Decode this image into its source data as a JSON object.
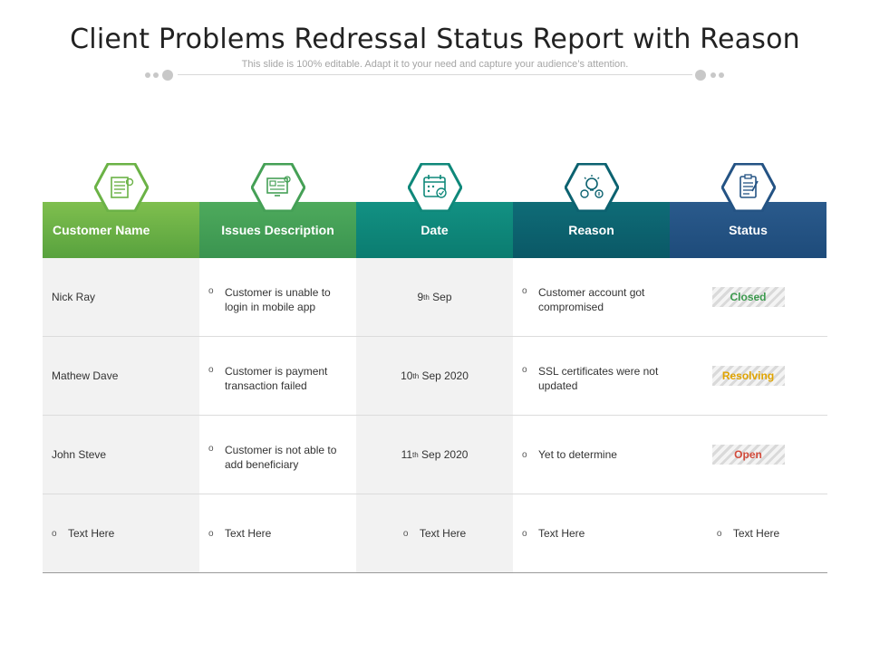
{
  "title": "Client Problems Redressal Status Report with Reason",
  "subtitle": "This slide is 100% editable. Adapt it to your need and capture your audience’s attention.",
  "colors": {
    "customer_name": "#6bb246",
    "issues_description": "#45a056",
    "date": "#0f887a",
    "reason": "#0c6270",
    "status": "#245384",
    "closed": "#3c9a4e",
    "resolving": "#e0a400",
    "open": "#d24a3a"
  },
  "icons": [
    "document-list-icon",
    "monitor-checklist-icon",
    "calendar-check-icon",
    "lightbulb-gears-icon",
    "clipboard-checklist-icon"
  ],
  "headers": [
    "Customer Name",
    "Issues Description",
    "Date",
    "Reason",
    "Status"
  ],
  "rows": [
    {
      "name": "Nick Ray",
      "issue": "Customer is unable to login in mobile app",
      "day": "9",
      "suffix": "th",
      "date_rest": " Sep",
      "reason": "Customer account got compromised",
      "status": "Closed"
    },
    {
      "name": "Mathew Dave",
      "issue": "Customer is payment transaction failed",
      "day": "10",
      "suffix": "th",
      "date_rest": " Sep 2020",
      "reason": "SSL certificates were not updated",
      "status": "Resolving"
    },
    {
      "name": "John Steve",
      "issue": "Customer is not able to add beneficiary",
      "day": "11",
      "suffix": "th",
      "date_rest": " Sep 2020",
      "reason": "Yet to determine",
      "status": "Open"
    }
  ],
  "placeholder_row": [
    "Text Here",
    "Text Here",
    "Text Here",
    "Text Here",
    "Text Here"
  ],
  "bullet": "o"
}
